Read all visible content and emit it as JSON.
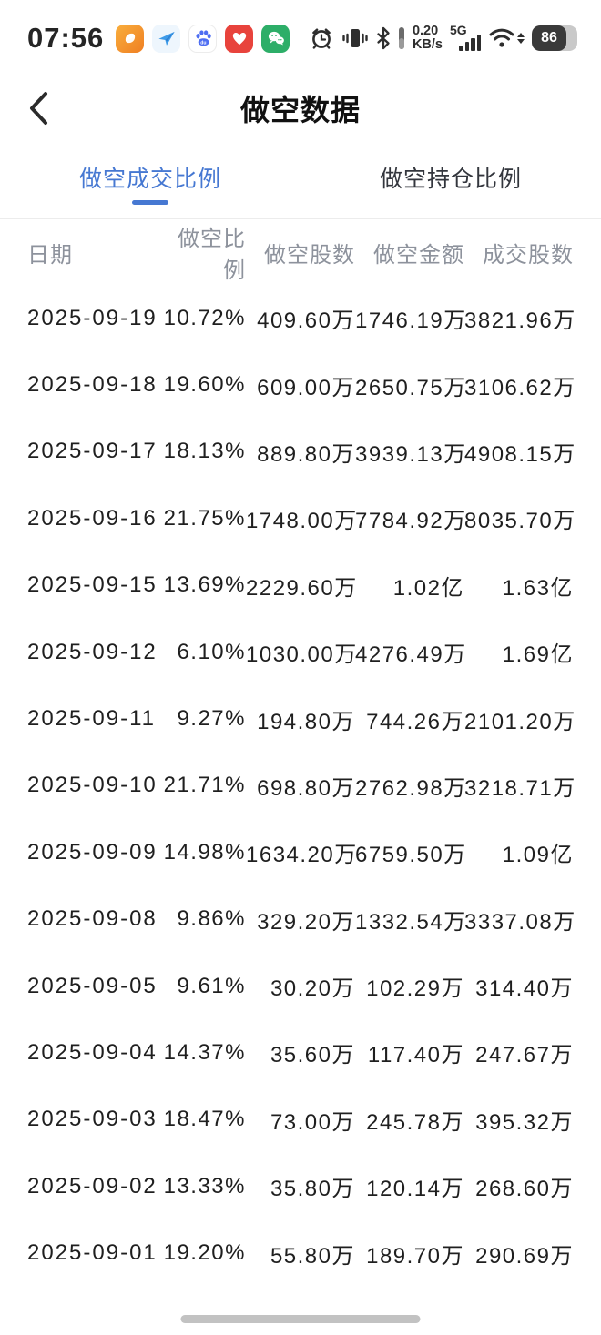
{
  "colors": {
    "accent_blue": "#4678d2",
    "header_gray": "#8d929c",
    "row_text": "#1f1f1f",
    "wechat_green": "#2dae68",
    "heart_red": "#e8433c",
    "baidu_blue": "#4e6ef2",
    "orange_app": "#ef8a28"
  },
  "status_bar": {
    "time": "07:56",
    "app_icons": [
      "orange-app-icon",
      "telegram-icon",
      "baidu-icon",
      "heart-app-icon",
      "wechat-icon"
    ],
    "system_icons": [
      "alarm-clock-icon",
      "vibrate-icon",
      "bluetooth-icon",
      "stylus-icon",
      "signal-icon",
      "wifi-icon"
    ],
    "network_speed_value": "0.20",
    "network_speed_unit": "KB/s",
    "network_type": "5G",
    "battery_percent": "86"
  },
  "header": {
    "title": "做空数据"
  },
  "tabs": [
    {
      "label": "做空成交比例",
      "active": true
    },
    {
      "label": "做空持仓比例",
      "active": false
    }
  ],
  "table": {
    "columns": [
      "日期",
      "做空比例",
      "做空股数",
      "做空金额",
      "成交股数"
    ],
    "rows": [
      {
        "date": "2025-09-19",
        "short_ratio": "10.72%",
        "short_shares": "409.60万",
        "short_amount": "1746.19万",
        "traded_shares": "3821.96万"
      },
      {
        "date": "2025-09-18",
        "short_ratio": "19.60%",
        "short_shares": "609.00万",
        "short_amount": "2650.75万",
        "traded_shares": "3106.62万"
      },
      {
        "date": "2025-09-17",
        "short_ratio": "18.13%",
        "short_shares": "889.80万",
        "short_amount": "3939.13万",
        "traded_shares": "4908.15万"
      },
      {
        "date": "2025-09-16",
        "short_ratio": "21.75%",
        "short_shares": "1748.00万",
        "short_amount": "7784.92万",
        "traded_shares": "8035.70万"
      },
      {
        "date": "2025-09-15",
        "short_ratio": "13.69%",
        "short_shares": "2229.60万",
        "short_amount": "1.02亿",
        "traded_shares": "1.63亿"
      },
      {
        "date": "2025-09-12",
        "short_ratio": "6.10%",
        "short_shares": "1030.00万",
        "short_amount": "4276.49万",
        "traded_shares": "1.69亿"
      },
      {
        "date": "2025-09-11",
        "short_ratio": "9.27%",
        "short_shares": "194.80万",
        "short_amount": "744.26万",
        "traded_shares": "2101.20万"
      },
      {
        "date": "2025-09-10",
        "short_ratio": "21.71%",
        "short_shares": "698.80万",
        "short_amount": "2762.98万",
        "traded_shares": "3218.71万"
      },
      {
        "date": "2025-09-09",
        "short_ratio": "14.98%",
        "short_shares": "1634.20万",
        "short_amount": "6759.50万",
        "traded_shares": "1.09亿"
      },
      {
        "date": "2025-09-08",
        "short_ratio": "9.86%",
        "short_shares": "329.20万",
        "short_amount": "1332.54万",
        "traded_shares": "3337.08万"
      },
      {
        "date": "2025-09-05",
        "short_ratio": "9.61%",
        "short_shares": "30.20万",
        "short_amount": "102.29万",
        "traded_shares": "314.40万"
      },
      {
        "date": "2025-09-04",
        "short_ratio": "14.37%",
        "short_shares": "35.60万",
        "short_amount": "117.40万",
        "traded_shares": "247.67万"
      },
      {
        "date": "2025-09-03",
        "short_ratio": "18.47%",
        "short_shares": "73.00万",
        "short_amount": "245.78万",
        "traded_shares": "395.32万"
      },
      {
        "date": "2025-09-02",
        "short_ratio": "13.33%",
        "short_shares": "35.80万",
        "short_amount": "120.14万",
        "traded_shares": "268.60万"
      },
      {
        "date": "2025-09-01",
        "short_ratio": "19.20%",
        "short_shares": "55.80万",
        "short_amount": "189.70万",
        "traded_shares": "290.69万"
      }
    ]
  }
}
